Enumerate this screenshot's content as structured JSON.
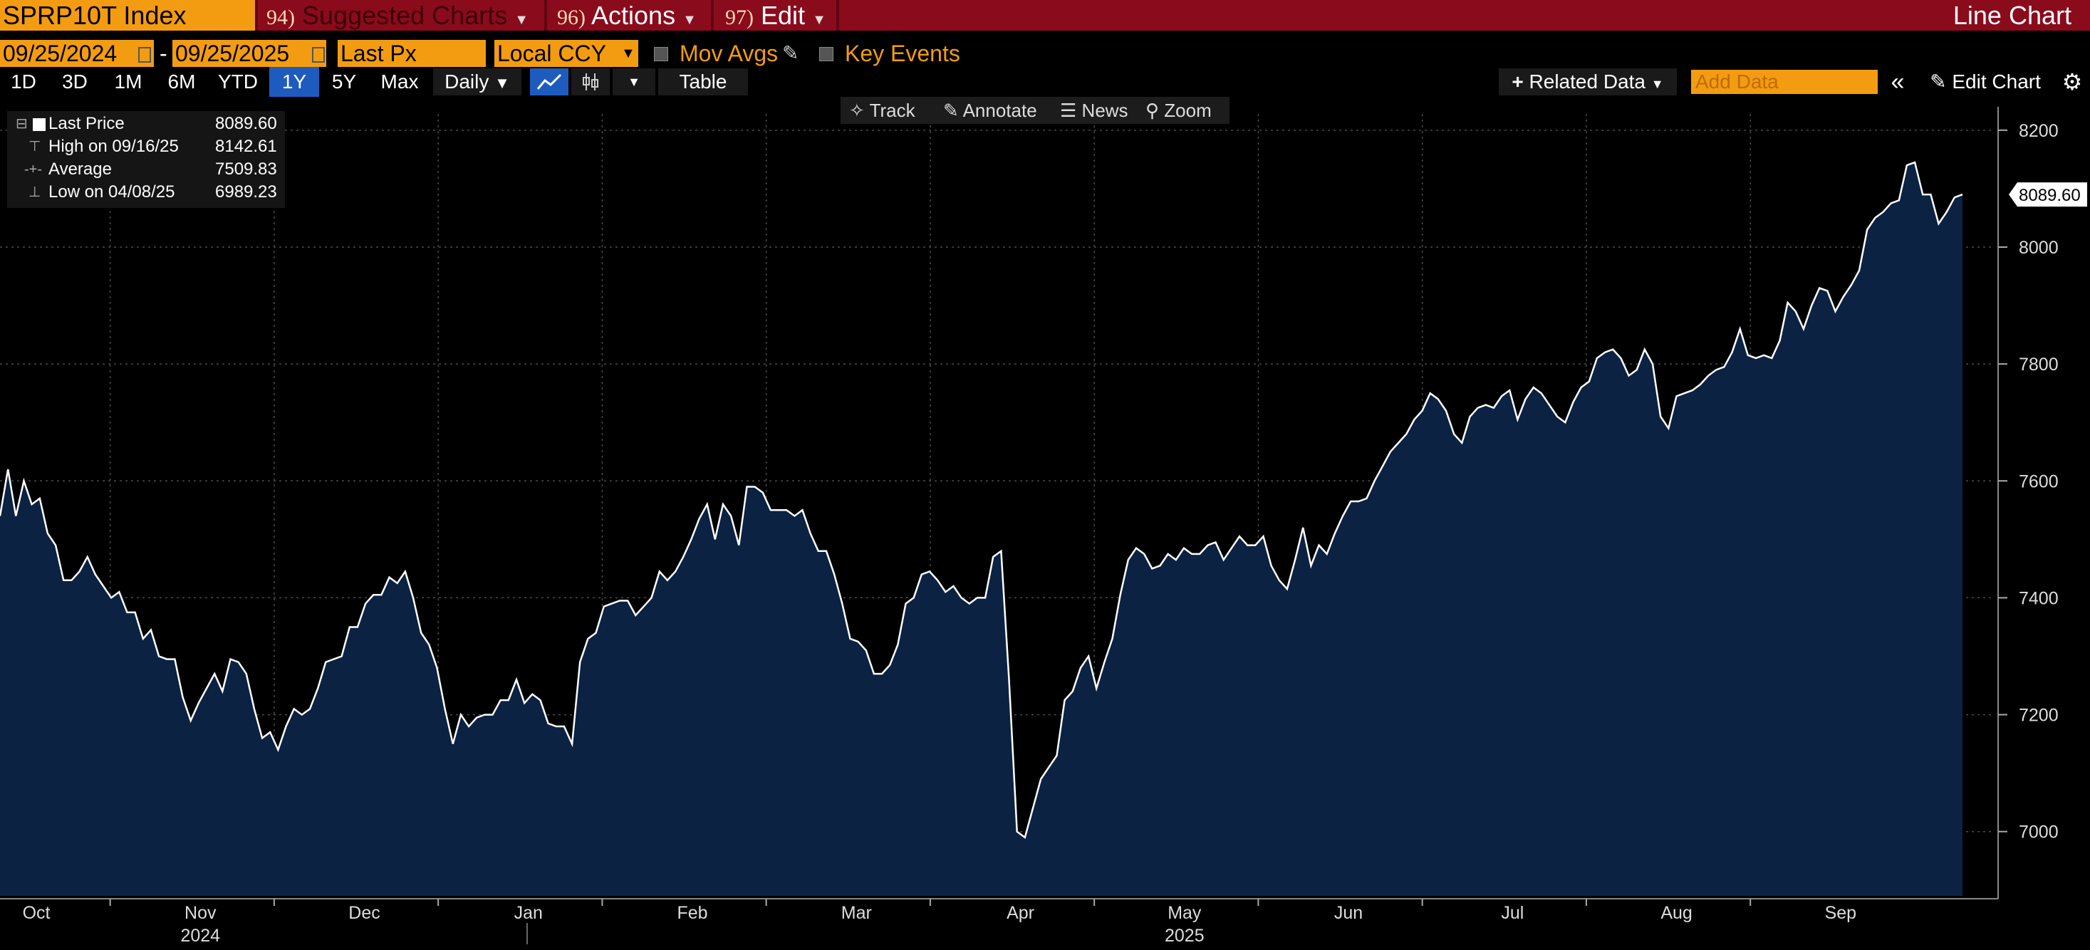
{
  "header": {
    "ticker": "SPRP10T Index",
    "suggested_num": "94)",
    "suggested_label": "Suggested Charts",
    "actions_num": "96)",
    "actions_label": "Actions",
    "edit_num": "97)",
    "edit_label": "Edit",
    "chart_title": "Line Chart"
  },
  "params": {
    "start_date": "09/25/2024",
    "end_date": "09/25/2025",
    "field": "Last Px",
    "currency": "Local CCY",
    "mov_avgs": "Mov Avgs",
    "key_events": "Key Events"
  },
  "periods": [
    "1D",
    "3D",
    "1M",
    "6M",
    "YTD",
    "1Y",
    "5Y",
    "Max"
  ],
  "active_period": "1Y",
  "frequency": "Daily",
  "table_label": "Table",
  "related_data": "Related Data",
  "add_data_placeholder": "Add Data",
  "edit_chart": "Edit Chart",
  "toolbar": {
    "track": "Track",
    "annotate": "Annotate",
    "news": "News",
    "zoom": "Zoom"
  },
  "legend": [
    {
      "label": "Last Price",
      "value": "8089.60"
    },
    {
      "label": "High on 09/16/25",
      "value": "8142.61"
    },
    {
      "label": "Average",
      "value": "7509.83"
    },
    {
      "label": "Low on 04/08/25",
      "value": "6989.23"
    }
  ],
  "colors": {
    "accent": "#f39c12",
    "header_bg": "#8a0b1c",
    "area_fill": "#0b2243",
    "line": "#ffffff",
    "active_tab": "#1e5bbf"
  },
  "chart_data": {
    "type": "area",
    "title": "SPRP10T Index",
    "last_value_label": "8089.60",
    "ylim": [
      6890,
      8240
    ],
    "yticks": [
      7000,
      7200,
      7400,
      7600,
      7800,
      8000,
      8200
    ],
    "ytick_labels": [
      "7000",
      "7200",
      "7400",
      "7600",
      "7800",
      "8000",
      "8200"
    ],
    "month_labels": [
      "Oct",
      "Nov",
      "Dec",
      "Jan",
      "Feb",
      "Mar",
      "Apr",
      "May",
      "Jun",
      "Jul",
      "Aug",
      "Sep"
    ],
    "year_labels": [
      {
        "year": "2024",
        "under": "Nov"
      },
      {
        "year": "2025",
        "under": "May"
      }
    ],
    "grid": true,
    "series": [
      {
        "values": [
          7540,
          7620,
          7540,
          7600,
          7560,
          7570,
          7510,
          7490,
          7430,
          7430,
          7445,
          7470,
          7440,
          7420,
          7400,
          7410,
          7375,
          7375,
          7330,
          7345,
          7300,
          7295,
          7295,
          7230,
          7190,
          7220,
          7245,
          7270,
          7240,
          7295,
          7290,
          7270,
          7210,
          7160,
          7170,
          7140,
          7180,
          7210,
          7200,
          7210,
          7245,
          7290,
          7295,
          7300,
          7350,
          7350,
          7390,
          7405,
          7405,
          7435,
          7425,
          7445,
          7400,
          7340,
          7320,
          7280,
          7210,
          7150,
          7200,
          7180,
          7195,
          7200,
          7200,
          7225,
          7225,
          7260,
          7220,
          7235,
          7225,
          7185,
          7180,
          7180,
          7150,
          7290,
          7330,
          7340,
          7385,
          7390,
          7395,
          7395,
          7370,
          7385,
          7400,
          7445,
          7430,
          7445,
          7470,
          7500,
          7535,
          7560,
          7500,
          7560,
          7540,
          7490,
          7590,
          7590,
          7580,
          7550,
          7550,
          7550,
          7540,
          7550,
          7510,
          7480,
          7480,
          7440,
          7390,
          7330,
          7325,
          7310,
          7270,
          7270,
          7285,
          7320,
          7390,
          7400,
          7440,
          7445,
          7430,
          7410,
          7420,
          7400,
          7390,
          7400,
          7400,
          7470,
          7480,
          7260,
          7000,
          6990,
          7040,
          7090,
          7110,
          7130,
          7225,
          7240,
          7280,
          7300,
          7245,
          7290,
          7330,
          7405,
          7465,
          7485,
          7475,
          7450,
          7455,
          7475,
          7465,
          7485,
          7475,
          7475,
          7490,
          7495,
          7465,
          7485,
          7505,
          7490,
          7490,
          7505,
          7455,
          7430,
          7415,
          7465,
          7520,
          7455,
          7490,
          7475,
          7510,
          7540,
          7565,
          7565,
          7570,
          7600,
          7625,
          7650,
          7665,
          7680,
          7705,
          7720,
          7750,
          7740,
          7720,
          7680,
          7665,
          7710,
          7725,
          7730,
          7725,
          7745,
          7755,
          7705,
          7740,
          7760,
          7750,
          7730,
          7710,
          7700,
          7735,
          7760,
          7770,
          7810,
          7820,
          7825,
          7810,
          7780,
          7790,
          7825,
          7800,
          7710,
          7690,
          7745,
          7750,
          7755,
          7765,
          7780,
          7790,
          7795,
          7820,
          7860,
          7815,
          7810,
          7815,
          7810,
          7840,
          7905,
          7890,
          7860,
          7900,
          7930,
          7925,
          7890,
          7915,
          7935,
          7960,
          8030,
          8050,
          8060,
          8075,
          8080,
          8140,
          8145,
          8090,
          8090,
          8040,
          8060,
          8085,
          8090
        ]
      }
    ]
  }
}
